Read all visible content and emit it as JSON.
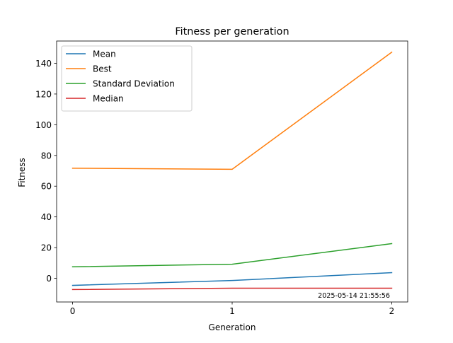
{
  "chart_data": {
    "type": "line",
    "title": "Fitness per generation",
    "xlabel": "Generation",
    "ylabel": "Fitness",
    "x": [
      0,
      1,
      2
    ],
    "x_ticks": [
      0,
      1,
      2
    ],
    "y_ticks": [
      0,
      20,
      40,
      60,
      80,
      100,
      120,
      140
    ],
    "xlim": [
      -0.1,
      2.1
    ],
    "ylim": [
      -15.4,
      154.5
    ],
    "grid": false,
    "legend_position": "upper left",
    "series": [
      {
        "name": "Mean",
        "color": "#1f77b4",
        "values": [
          -4.6,
          -1.4,
          3.7
        ]
      },
      {
        "name": "Best",
        "color": "#ff7f0e",
        "values": [
          71.7,
          71.0,
          147.2
        ]
      },
      {
        "name": "Standard Deviation",
        "color": "#2ca02c",
        "values": [
          7.5,
          9.2,
          22.6
        ]
      },
      {
        "name": "Median",
        "color": "#d62728",
        "values": [
          -7.3,
          -6.4,
          -6.4
        ]
      }
    ],
    "annotation": "2025-05-14 21:55:56"
  }
}
